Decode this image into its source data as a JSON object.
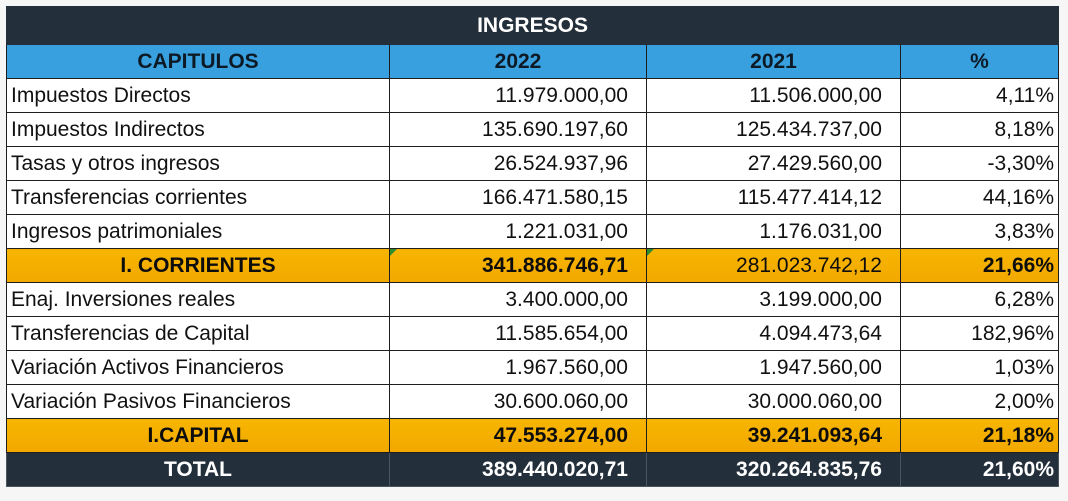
{
  "table": {
    "title": "INGRESOS",
    "headers": [
      "CAPITULOS",
      "2022",
      "2021",
      "%"
    ],
    "rows": [
      {
        "type": "data",
        "label": "Impuestos Directos",
        "v2022": "11.979.000,00",
        "v2021": "11.506.000,00",
        "pct": "4,11%"
      },
      {
        "type": "data",
        "label": "Impuestos Indirectos",
        "v2022": "135.690.197,60",
        "v2021": "125.434.737,00",
        "pct": "8,18%"
      },
      {
        "type": "data",
        "label": "Tasas y otros ingresos",
        "v2022": "26.524.937,96",
        "v2021": "27.429.560,00",
        "pct": "-3,30%"
      },
      {
        "type": "data",
        "label": "Transferencias corrientes",
        "v2022": "166.471.580,15",
        "v2021": "115.477.414,12",
        "pct": "44,16%"
      },
      {
        "type": "data",
        "label": "Ingresos patrimoniales",
        "v2022": "1.221.031,00",
        "v2021": "1.176.031,00",
        "pct": "3,83%"
      },
      {
        "type": "subtotal",
        "label": "I. CORRIENTES",
        "v2022": "341.886.746,71",
        "v2021": "281.023.742,12",
        "pct": "21,66%"
      },
      {
        "type": "data",
        "label": "Enaj. Inversiones reales",
        "v2022": "3.400.000,00",
        "v2021": "3.199.000,00",
        "pct": "6,28%"
      },
      {
        "type": "data",
        "label": "Transferencias de Capital",
        "v2022": "11.585.654,00",
        "v2021": "4.094.473,64",
        "pct": "182,96%"
      },
      {
        "type": "data",
        "label": "Variación Activos Financieros",
        "v2022": "1.967.560,00",
        "v2021": "1.947.560,00",
        "pct": "1,03%"
      },
      {
        "type": "data",
        "label": "Variación Pasivos Financieros",
        "v2022": "30.600.060,00",
        "v2021": "30.000.060,00",
        "pct": "2,00%"
      },
      {
        "type": "subtotal",
        "label": "I.CAPITAL",
        "v2022": "47.553.274,00",
        "v2021": "39.241.093,64",
        "pct": "21,18%"
      },
      {
        "type": "total",
        "label": "TOTAL",
        "v2022": "389.440.020,71",
        "v2021": "320.264.835,76",
        "pct": "21,60%"
      }
    ]
  },
  "colors": {
    "title_bg": "#232f3a",
    "header_bg": "#38a0de",
    "subtotal_bg": "#f5b000",
    "total_bg": "#232f3a"
  }
}
